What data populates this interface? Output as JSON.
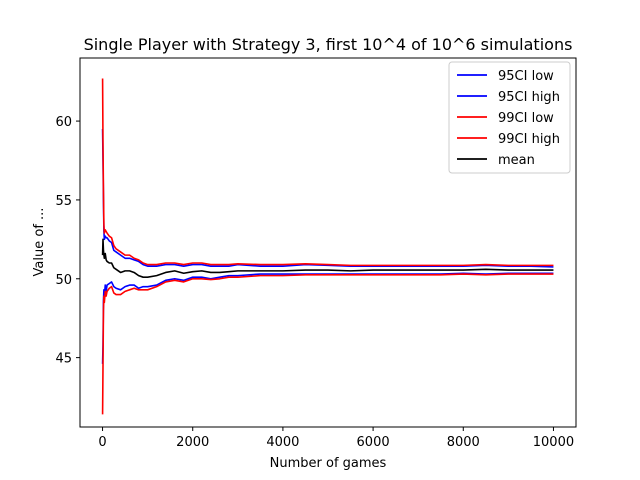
{
  "chart_data": {
    "type": "line",
    "title": "Single Player with Strategy 3, first 10^4 of 10^6 simulations",
    "xlabel": "Number of games",
    "ylabel": "Value of ...",
    "xlim": [
      -500,
      10500
    ],
    "ylim": [
      40.6,
      64.0
    ],
    "x_ticks": [
      0,
      2000,
      4000,
      6000,
      8000,
      10000
    ],
    "x_tick_labels": [
      "0",
      "2000",
      "4000",
      "6000",
      "8000",
      "10000"
    ],
    "y_ticks": [
      45,
      50,
      55,
      60
    ],
    "y_tick_labels": [
      "45",
      "50",
      "55",
      "60"
    ],
    "grid": false,
    "legend_position": "top-right",
    "x": [
      1,
      10,
      20,
      30,
      40,
      60,
      80,
      100,
      150,
      200,
      250,
      300,
      400,
      500,
      600,
      700,
      800,
      900,
      1000,
      1200,
      1400,
      1600,
      1800,
      2000,
      2200,
      2400,
      2600,
      2800,
      3000,
      3500,
      4000,
      4500,
      5000,
      5500,
      6000,
      6500,
      7000,
      7500,
      8000,
      8500,
      9000,
      9500,
      10000
    ],
    "series": [
      {
        "name": "95CI low",
        "color": "#0000ff",
        "values": [
          44.6,
          45.8,
          48.6,
          49.3,
          48.9,
          49.6,
          49.2,
          49.6,
          49.7,
          49.8,
          49.5,
          49.4,
          49.3,
          49.5,
          49.6,
          49.6,
          49.4,
          49.5,
          49.5,
          49.6,
          49.9,
          50.0,
          49.9,
          50.1,
          50.1,
          50.0,
          50.1,
          50.2,
          50.2,
          50.3,
          50.3,
          50.3,
          50.3,
          50.3,
          50.3,
          50.3,
          50.3,
          50.3,
          50.35,
          50.3,
          50.35,
          50.35,
          50.35
        ]
      },
      {
        "name": "95CI high",
        "color": "#0000ff",
        "values": [
          59.5,
          57.5,
          55.0,
          53.0,
          52.5,
          52.7,
          52.6,
          52.6,
          52.4,
          52.3,
          51.8,
          51.7,
          51.5,
          51.3,
          51.3,
          51.2,
          51.1,
          50.9,
          50.8,
          50.8,
          50.9,
          50.9,
          50.8,
          50.9,
          50.9,
          50.8,
          50.8,
          50.8,
          50.9,
          50.8,
          50.8,
          50.9,
          50.85,
          50.8,
          50.8,
          50.8,
          50.8,
          50.8,
          50.8,
          50.85,
          50.8,
          50.8,
          50.75
        ]
      },
      {
        "name": "99CI low",
        "color": "#ff0000",
        "values": [
          41.4,
          44.5,
          48.0,
          48.9,
          48.5,
          49.2,
          48.9,
          49.2,
          49.4,
          49.5,
          49.1,
          49.0,
          49.0,
          49.2,
          49.3,
          49.4,
          49.3,
          49.3,
          49.3,
          49.5,
          49.8,
          49.9,
          49.8,
          50.0,
          50.0,
          49.95,
          50.0,
          50.1,
          50.1,
          50.2,
          50.2,
          50.25,
          50.25,
          50.25,
          50.25,
          50.25,
          50.25,
          50.25,
          50.3,
          50.25,
          50.3,
          50.3,
          50.3
        ]
      },
      {
        "name": "99CI high",
        "color": "#ff0000",
        "values": [
          62.7,
          58.5,
          55.6,
          53.4,
          52.9,
          53.1,
          53.0,
          52.9,
          52.7,
          52.6,
          52.1,
          51.9,
          51.7,
          51.5,
          51.5,
          51.3,
          51.2,
          51.0,
          50.9,
          50.9,
          51.0,
          51.0,
          50.9,
          51.0,
          51.0,
          50.9,
          50.9,
          50.9,
          50.95,
          50.9,
          50.9,
          50.95,
          50.9,
          50.85,
          50.85,
          50.85,
          50.85,
          50.85,
          50.85,
          50.9,
          50.85,
          50.85,
          50.85
        ]
      },
      {
        "name": "mean",
        "color": "#000000",
        "values": [
          51.5,
          52.5,
          51.8,
          51.5,
          51.3,
          51.6,
          51.2,
          51.1,
          51.0,
          51.0,
          50.7,
          50.6,
          50.4,
          50.5,
          50.5,
          50.4,
          50.2,
          50.1,
          50.1,
          50.2,
          50.4,
          50.5,
          50.35,
          50.45,
          50.5,
          50.4,
          50.4,
          50.45,
          50.5,
          50.5,
          50.5,
          50.55,
          50.55,
          50.5,
          50.55,
          50.55,
          50.55,
          50.55,
          50.55,
          50.6,
          50.55,
          50.55,
          50.55
        ]
      }
    ]
  }
}
